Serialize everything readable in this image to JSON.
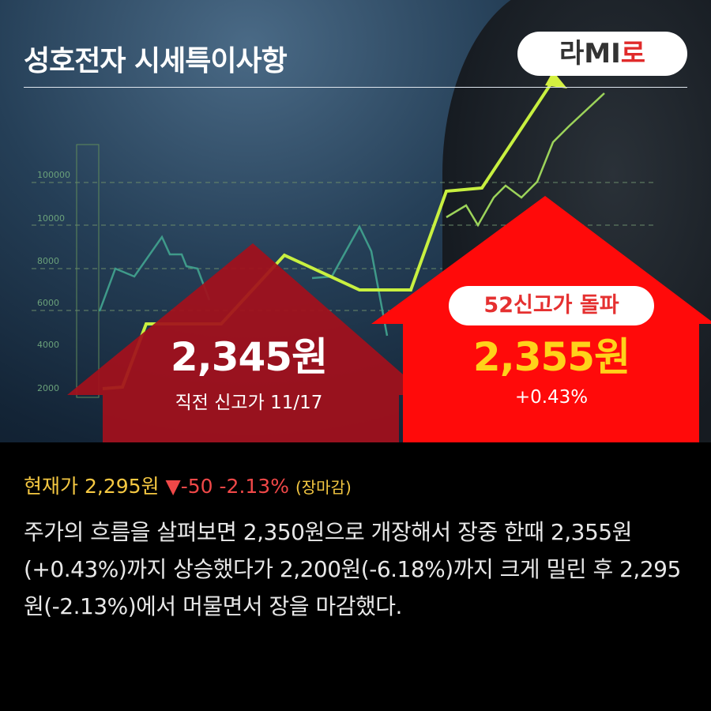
{
  "header": {
    "title": "성호전자 시세특이사항",
    "logo_main": "라MI",
    "logo_accent": "로"
  },
  "background_chart": {
    "y_labels": [
      "100000",
      "10000",
      "8000",
      "6000",
      "4000",
      "2000"
    ]
  },
  "previous_high": {
    "price": "2,345원",
    "label": "직전 신고가 11/17"
  },
  "new_high": {
    "badge": "52신고가 돌파",
    "price": "2,355원",
    "change": "+0.43%"
  },
  "status": {
    "label": "현재가",
    "price": "2,295원",
    "arrow": "▼",
    "change": "-50",
    "change_pct": "-2.13%",
    "session": "(장마감)"
  },
  "summary": "주가의 흐름을 살펴보면 2,350원으로 개장해서 장중 한때 2,355원(+0.43%)까지 상승했다가 2,200원(-6.18%)까지 크게 밀린 후 2,295원(-2.13%)에서 머물면서 장을 마감했다.",
  "colors": {
    "left_arrow": "#a3101c",
    "right_arrow": "#ff0a0a",
    "price_yellow": "#ffd21a",
    "status_yellow": "#f5c842",
    "down_red": "#f04848"
  }
}
